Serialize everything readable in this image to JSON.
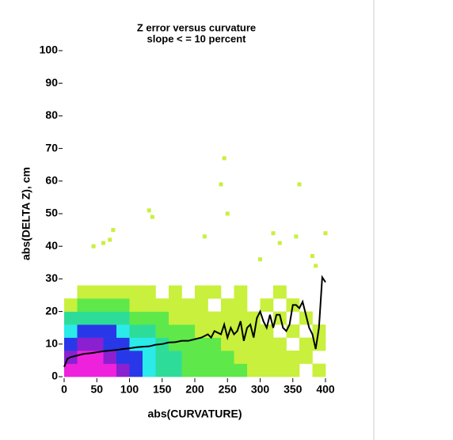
{
  "chart_data": {
    "type": "heatmap",
    "title": "Z error versus curvature",
    "subtitle": "slope < = 10 percent",
    "xlabel": "abs(CURVATURE)",
    "ylabel": "abs(DELTA Z), cm",
    "xlim": [
      0,
      400
    ],
    "ylim": [
      0,
      100
    ],
    "xticks": [
      0,
      50,
      100,
      150,
      200,
      250,
      300,
      350,
      400
    ],
    "yticks": [
      0,
      10,
      20,
      30,
      40,
      50,
      60,
      70,
      80,
      90,
      100
    ],
    "x_bins": [
      0,
      20,
      40,
      60,
      80,
      100,
      120,
      140,
      160,
      180,
      200,
      220,
      240,
      260,
      280,
      300,
      320,
      340,
      360,
      380,
      400
    ],
    "y_bins": [
      0,
      4,
      8,
      12,
      16,
      20,
      24,
      28
    ],
    "colorscale": [
      "#c8f03c",
      "#5ee84a",
      "#2edc9a",
      "#2aeaea",
      "#2838e8",
      "#8a20d0",
      "#ee22dd"
    ],
    "counts": [
      [
        7,
        7,
        7,
        7,
        6,
        5,
        4,
        3,
        3,
        2,
        2,
        2,
        2,
        2,
        1,
        1,
        1,
        1,
        0,
        1
      ],
      [
        6,
        7,
        7,
        6,
        5,
        5,
        4,
        3,
        3,
        2,
        2,
        2,
        2,
        1,
        1,
        1,
        1,
        1,
        1,
        0
      ],
      [
        5,
        6,
        6,
        5,
        5,
        4,
        4,
        3,
        2,
        2,
        2,
        2,
        1,
        1,
        1,
        1,
        1,
        0,
        1,
        1
      ],
      [
        4,
        5,
        5,
        5,
        4,
        3,
        3,
        2,
        2,
        2,
        1,
        1,
        1,
        1,
        1,
        1,
        0,
        1,
        0,
        1
      ],
      [
        3,
        3,
        3,
        3,
        3,
        2,
        2,
        2,
        1,
        1,
        1,
        1,
        1,
        1,
        1,
        0,
        1,
        0,
        1,
        0
      ],
      [
        1,
        2,
        2,
        2,
        2,
        1,
        1,
        1,
        1,
        1,
        1,
        0,
        1,
        1,
        0,
        1,
        0,
        1,
        0,
        0
      ],
      [
        0,
        1,
        1,
        1,
        1,
        1,
        1,
        0,
        1,
        0,
        1,
        1,
        0,
        1,
        0,
        0,
        1,
        0,
        0,
        0
      ]
    ],
    "points": {
      "color": "#c8f03c",
      "x": [
        45,
        70,
        75,
        60,
        130,
        135,
        240,
        245,
        250,
        360,
        400,
        215,
        320,
        355,
        330,
        380,
        300,
        385
      ],
      "y": [
        40,
        42,
        45,
        41,
        51,
        49,
        59,
        67,
        50,
        59,
        44,
        43,
        44,
        43,
        41,
        37,
        36,
        34
      ]
    },
    "line": {
      "color": "#000000",
      "x": [
        0,
        5,
        10,
        20,
        30,
        40,
        50,
        60,
        70,
        80,
        90,
        100,
        110,
        120,
        130,
        140,
        150,
        160,
        170,
        180,
        190,
        200,
        210,
        220,
        225,
        230,
        240,
        245,
        250,
        255,
        260,
        265,
        270,
        275,
        280,
        285,
        290,
        295,
        300,
        305,
        310,
        315,
        320,
        325,
        330,
        335,
        340,
        345,
        350,
        355,
        360,
        365,
        370,
        375,
        380,
        385,
        390,
        395,
        400
      ],
      "y": [
        3,
        5.5,
        6,
        6.5,
        7,
        7.2,
        7.5,
        7.8,
        8,
        8.2,
        8.5,
        8.7,
        9,
        9.2,
        9.3,
        9.8,
        10,
        10.5,
        10.6,
        11,
        11,
        11.5,
        12,
        13,
        12,
        14,
        13,
        16,
        12,
        15,
        13,
        14,
        17,
        11,
        15,
        16,
        12,
        18,
        20,
        17,
        15,
        19,
        15,
        19,
        19,
        15,
        14,
        16,
        22,
        22,
        21,
        23,
        19,
        15,
        13,
        8.5,
        15,
        30.5,
        29
      ]
    }
  }
}
